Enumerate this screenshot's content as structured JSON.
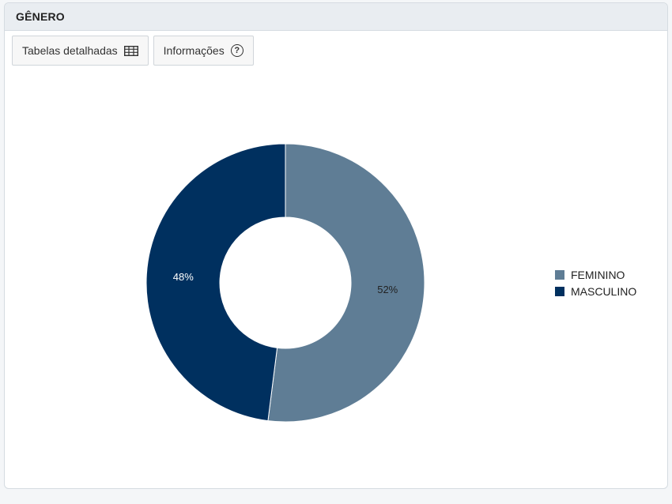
{
  "panel": {
    "title": "GÊNERO"
  },
  "toolbar": {
    "tables_label": "Tabelas detalhadas",
    "tables_icon": "table-icon",
    "info_label": "Informações",
    "info_icon": "help-circle-icon",
    "info_glyph": "?"
  },
  "chart_data": {
    "type": "pie",
    "donut": true,
    "categories": [
      "FEMININO",
      "MASCULINO"
    ],
    "values": [
      52,
      48
    ],
    "labels": [
      "52%",
      "48%"
    ],
    "colors": [
      "#5f7d95",
      "#00305f"
    ],
    "label_colors": [
      "#222222",
      "#ffffff"
    ],
    "legend_position": "right"
  }
}
